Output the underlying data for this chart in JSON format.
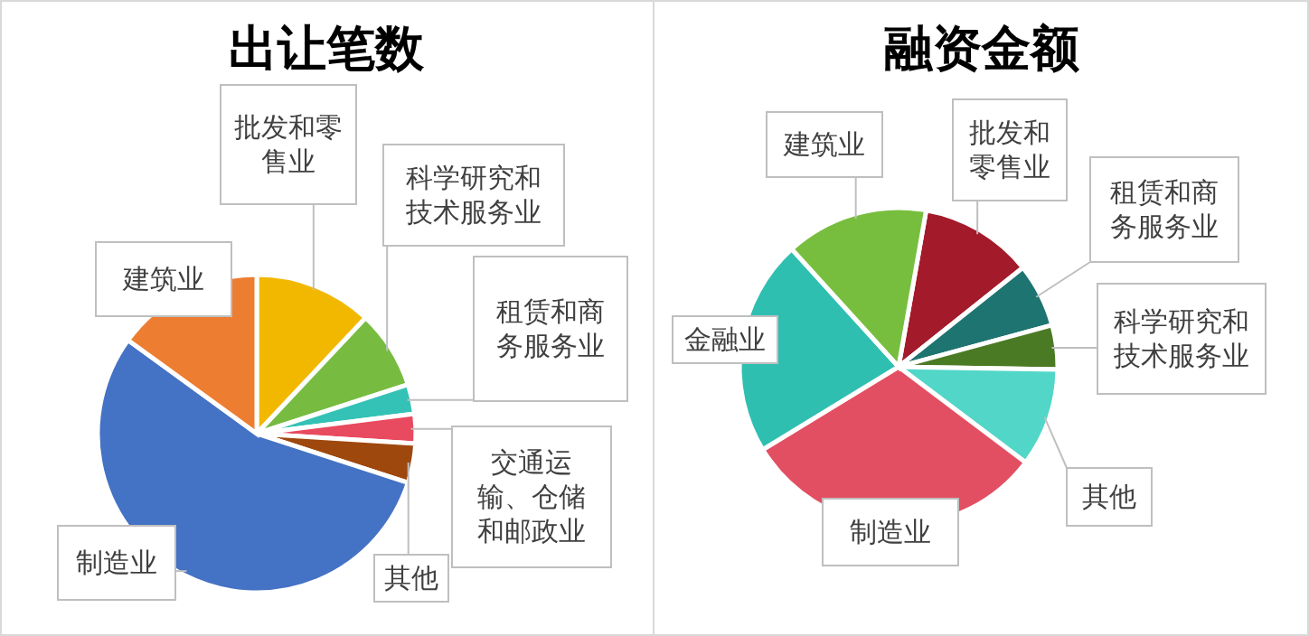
{
  "chart_data": [
    {
      "type": "pie",
      "title": "出让笔数",
      "categories": [
        "批发和零售业",
        "科学研究和技术服务业",
        "租赁和商务服务业",
        "交通运输、仓储和邮政业",
        "其他",
        "制造业",
        "建筑业"
      ],
      "values": [
        12,
        8,
        3,
        3,
        4,
        55,
        15
      ],
      "colors": [
        "#f2b800",
        "#77bc41",
        "#33c2b5",
        "#e84a5f",
        "#9e480e",
        "#4472c4",
        "#ed7d31"
      ]
    },
    {
      "type": "pie",
      "title": "融资金额",
      "categories": [
        "批发和零售业",
        "租赁和商务服务业",
        "科学研究和技术服务业",
        "其他",
        "制造业",
        "金融业",
        "建筑业"
      ],
      "values": [
        11.5,
        6.5,
        4.5,
        10,
        31,
        22,
        14.5
      ],
      "colors": [
        "#a31a2a",
        "#1e7470",
        "#4b7a24",
        "#52d6c8",
        "#e34f62",
        "#2fbfb1",
        "#78be3e"
      ]
    }
  ]
}
